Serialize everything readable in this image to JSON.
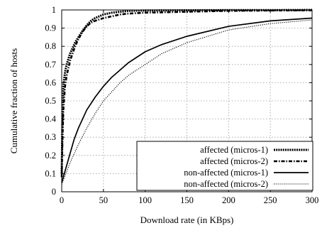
{
  "chart_data": {
    "type": "line",
    "xlabel": "Download rate (in KBps)",
    "ylabel": "Cumulative fraction of hosts",
    "xlim": [
      0,
      300
    ],
    "ylim": [
      0,
      1
    ],
    "xticks": [
      "0",
      "50",
      "100",
      "150",
      "200",
      "250",
      "300"
    ],
    "yticks": [
      "0",
      "0.1",
      "0.2",
      "0.3",
      "0.4",
      "0.5",
      "0.6",
      "0.7",
      "0.8",
      "0.9",
      "1"
    ],
    "grid": true,
    "legend_position": "bottom-right",
    "series": [
      {
        "name": "affected (micros-1)",
        "style": "dense-dotted-thick",
        "x": [
          0,
          1,
          2,
          4,
          6,
          8,
          10,
          13,
          16,
          20,
          25,
          30,
          35,
          40,
          50,
          60,
          70,
          80,
          100,
          150,
          200,
          250,
          300
        ],
        "y": [
          0.1,
          0.45,
          0.58,
          0.66,
          0.7,
          0.73,
          0.76,
          0.79,
          0.82,
          0.85,
          0.885,
          0.915,
          0.94,
          0.955,
          0.975,
          0.985,
          0.99,
          0.995,
          0.997,
          0.998,
          0.999,
          0.999,
          1.0
        ]
      },
      {
        "name": "affected (micros-2)",
        "style": "dash-dot-thick",
        "x": [
          0,
          1,
          2,
          4,
          6,
          8,
          10,
          13,
          16,
          20,
          25,
          30,
          35,
          40,
          50,
          60,
          70,
          80,
          100,
          150,
          200,
          250,
          300
        ],
        "y": [
          0.08,
          0.3,
          0.45,
          0.58,
          0.64,
          0.68,
          0.72,
          0.76,
          0.8,
          0.84,
          0.88,
          0.91,
          0.93,
          0.94,
          0.955,
          0.965,
          0.975,
          0.98,
          0.985,
          0.99,
          0.995,
          0.997,
          0.998
        ]
      },
      {
        "name": "non-affected (micros-1)",
        "style": "solid",
        "x": [
          0,
          5,
          10,
          15,
          20,
          30,
          40,
          50,
          60,
          70,
          80,
          100,
          120,
          150,
          200,
          250,
          300
        ],
        "y": [
          0.05,
          0.13,
          0.21,
          0.29,
          0.35,
          0.45,
          0.52,
          0.58,
          0.63,
          0.67,
          0.71,
          0.77,
          0.81,
          0.855,
          0.91,
          0.94,
          0.955
        ]
      },
      {
        "name": "non-affected (micros-2)",
        "style": "fine-dotted",
        "x": [
          0,
          5,
          10,
          15,
          20,
          30,
          40,
          50,
          60,
          70,
          80,
          100,
          120,
          150,
          200,
          250,
          300
        ],
        "y": [
          0.04,
          0.1,
          0.16,
          0.21,
          0.26,
          0.35,
          0.43,
          0.5,
          0.55,
          0.6,
          0.64,
          0.7,
          0.76,
          0.82,
          0.89,
          0.925,
          0.945
        ]
      }
    ]
  }
}
